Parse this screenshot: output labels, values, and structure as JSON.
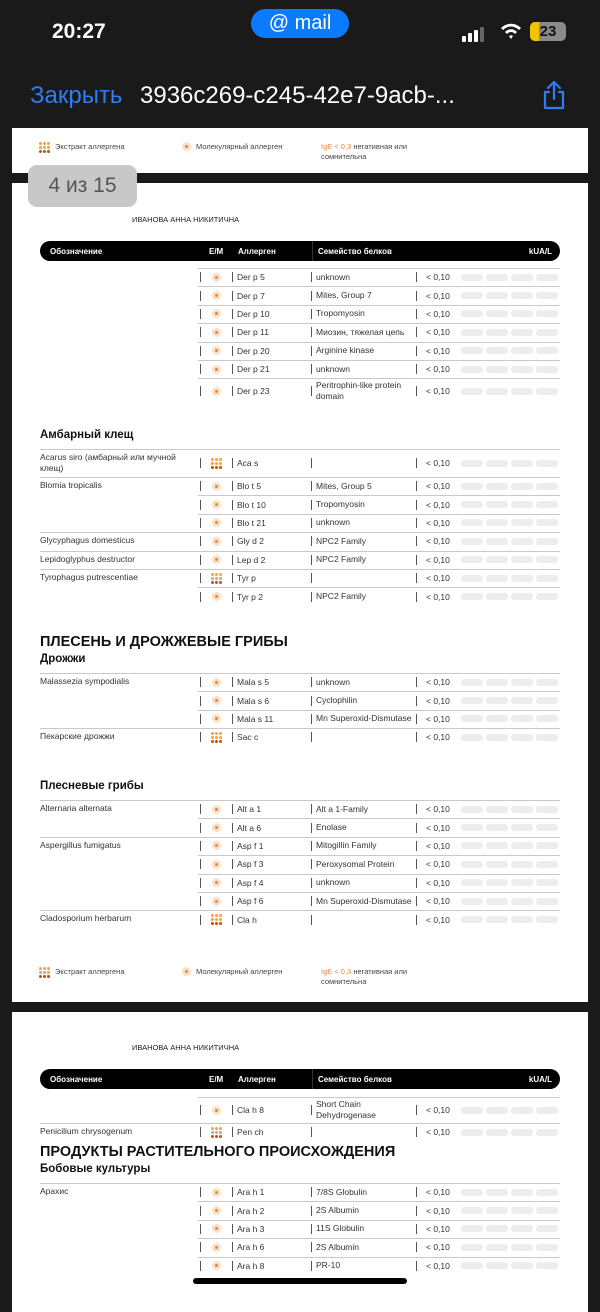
{
  "status_bar": {
    "time": "20:27",
    "app_pill": "@ mail",
    "battery": "23"
  },
  "nav": {
    "close_label": "Закрыть",
    "title": "3936c269-c245-42e7-9acb-..."
  },
  "pager": "4 из 15",
  "legend": {
    "extract": "Экстракт аллергена",
    "molecular": "Молекулярный аллерген",
    "ige": "IgE < 0,3",
    "ige_note": "негативная или сомнительна"
  },
  "patient": "ИВАНОВА АННА НИКИТИЧНА",
  "table_header": {
    "designation": "Обозначение",
    "em": "E/M",
    "allergen": "Аллерген",
    "family": "Семейство белков",
    "unit": "kUA/L"
  },
  "colors": {
    "accent": "#e8873a",
    "link": "#2f7cf6",
    "pill": "#0a7aff"
  },
  "page2": {
    "blocks": [
      {
        "rows": [
          {
            "name": "",
            "type": "m",
            "code": "Der p 5",
            "family": "unknown",
            "value": "< 0,10"
          },
          {
            "name": "",
            "type": "m",
            "code": "Der p 7",
            "family": "Mites, Group 7",
            "value": "< 0,10"
          },
          {
            "name": "",
            "type": "m",
            "code": "Der p 10",
            "family": "Tropomyosin",
            "value": "< 0,10"
          },
          {
            "name": "",
            "type": "m",
            "code": "Der p 11",
            "family": "Миозин, тяжелая цепь",
            "value": "< 0,10"
          },
          {
            "name": "",
            "type": "m",
            "code": "Der p 20",
            "family": "Arginine kinase",
            "value": "< 0,10"
          },
          {
            "name": "",
            "type": "m",
            "code": "Der p 21",
            "family": "unknown",
            "value": "< 0,10"
          },
          {
            "name": "",
            "type": "m",
            "code": "Der p 23",
            "family": "Peritrophin-like protein domain",
            "value": "< 0,10"
          }
        ]
      },
      {
        "subheading": "Амбарный клещ",
        "rows": [
          {
            "name": "Acarus siro (амбарный или мучной клещ)",
            "type": "e",
            "code": "Aca s",
            "family": "",
            "value": "< 0,10"
          },
          {
            "name": "Blomia tropicalis",
            "type": "m",
            "code": "Blo t 5",
            "family": "Mites, Group 5",
            "value": "< 0,10"
          },
          {
            "name": "",
            "type": "m",
            "code": "Blo t 10",
            "family": "Tropomyosin",
            "value": "< 0,10"
          },
          {
            "name": "",
            "type": "m",
            "code": "Blo t 21",
            "family": "unknown",
            "value": "< 0,10"
          },
          {
            "name": "Glycyphagus domesticus",
            "type": "m",
            "code": "Gly d 2",
            "family": "NPC2 Family",
            "value": "< 0,10"
          },
          {
            "name": "Lepidoglyphus destructor",
            "type": "m",
            "code": "Lep d 2",
            "family": "NPC2 Family",
            "value": "< 0,10"
          },
          {
            "name": "Tyrophagus putrescentiae",
            "type": "e",
            "code": "Tyr p",
            "family": "",
            "value": "< 0,10"
          },
          {
            "name": "",
            "type": "m",
            "code": "Tyr p 2",
            "family": "NPC2 Family",
            "value": "< 0,10"
          }
        ]
      },
      {
        "heading": "ПЛЕСЕНЬ И ДРОЖЖЕВЫЕ ГРИБЫ",
        "subheading": "Дрожжи",
        "rows": [
          {
            "name": "Malassezia sympodialis",
            "type": "m",
            "code": "Mala s 5",
            "family": "unknown",
            "value": "< 0,10"
          },
          {
            "name": "",
            "type": "m",
            "code": "Mala s 6",
            "family": "Cyclophilin",
            "value": "< 0,10"
          },
          {
            "name": "",
            "type": "m",
            "code": "Mala s 11",
            "family": "Mn Superoxid-Dismutase",
            "value": "< 0,10"
          },
          {
            "name": "Пекарские дрожжи",
            "type": "e",
            "code": "Sac c",
            "family": "",
            "value": "< 0,10"
          }
        ]
      },
      {
        "subheading": "Плесневые грибы",
        "rows": [
          {
            "name": "Alternaria alternata",
            "type": "m",
            "code": "Alt a 1",
            "family": "Alt a 1-Family",
            "value": "< 0,10"
          },
          {
            "name": "",
            "type": "m",
            "code": "Alt a 6",
            "family": "Enolase",
            "value": "< 0,10"
          },
          {
            "name": "Aspergillus fumigatus",
            "type": "m",
            "code": "Asp f 1",
            "family": "Mitogillin Family",
            "value": "< 0,10"
          },
          {
            "name": "",
            "type": "m",
            "code": "Asp f 3",
            "family": "Peroxysomal Protein",
            "value": "< 0,10"
          },
          {
            "name": "",
            "type": "m",
            "code": "Asp f 4",
            "family": "unknown",
            "value": "< 0,10"
          },
          {
            "name": "",
            "type": "m",
            "code": "Asp f 6",
            "family": "Mn Superoxid-Dismutase",
            "value": "< 0,10"
          },
          {
            "name": "Cladosporium herbarum",
            "type": "e",
            "code": "Cla h",
            "family": "",
            "value": "< 0,10"
          }
        ]
      }
    ]
  },
  "page3": {
    "blocks": [
      {
        "rows": [
          {
            "name": "",
            "type": "m",
            "code": "Cla h 8",
            "family": "Short Chain Dehydrogenase",
            "value": "< 0,10"
          },
          {
            "name": "Penicilium chrysogenum",
            "type": "e",
            "code": "Pen ch",
            "family": "",
            "value": "< 0,10"
          }
        ]
      },
      {
        "heading": "ПРОДУКТЫ РАСТИТЕЛЬНОГО ПРОИСХОЖДЕНИЯ",
        "subheading": "Бобовые культуры",
        "rows": [
          {
            "name": "Арахис",
            "type": "m",
            "code": "Ara h 1",
            "family": "7/8S Globulin",
            "value": "< 0,10"
          },
          {
            "name": "",
            "type": "m",
            "code": "Ara h 2",
            "family": "2S Albumin",
            "value": "< 0,10"
          },
          {
            "name": "",
            "type": "m",
            "code": "Ara h 3",
            "family": "11S Globulin",
            "value": "< 0,10"
          },
          {
            "name": "",
            "type": "m",
            "code": "Ara h 6",
            "family": "2S Albumin",
            "value": "< 0,10"
          },
          {
            "name": "",
            "type": "m",
            "code": "Ara h 8",
            "family": "PR-10",
            "value": "< 0,10"
          }
        ]
      }
    ]
  }
}
